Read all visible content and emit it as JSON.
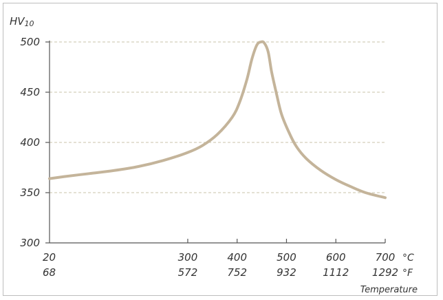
{
  "chart_data": {
    "type": "line",
    "title": "",
    "ylabel": {
      "main": "HV",
      "sub": "10"
    },
    "xlabel": "Temperature",
    "ylim": [
      300,
      500
    ],
    "yticks": [
      "300",
      "350",
      "400",
      "450",
      "500"
    ],
    "yticks_values": [
      300,
      350,
      400,
      450,
      500
    ],
    "xlim": [
      20,
      700
    ],
    "xticks_c": [
      "20",
      "300",
      "400",
      "500",
      "600",
      "700"
    ],
    "xticks_f": [
      "68",
      "572",
      "752",
      "932",
      "1112",
      "1292"
    ],
    "xticks_values": [
      20,
      300,
      400,
      500,
      600,
      700
    ],
    "x_unit_c": "°C",
    "x_unit_f": "°F",
    "grid": "horizontal-dashed",
    "series_color": "#c4b49a",
    "series": [
      {
        "x": [
          20,
          50,
          100,
          150,
          200,
          250,
          300,
          330,
          360,
          390,
          405,
          420,
          430,
          440,
          448,
          455,
          463,
          470,
          480,
          490,
          505,
          520,
          540,
          570,
          600,
          630,
          660,
          700
        ],
        "values": [
          364,
          366,
          369,
          372,
          376,
          382,
          390,
          397,
          408,
          425,
          440,
          463,
          483,
          497,
          500,
          499,
          490,
          470,
          448,
          428,
          410,
          396,
          384,
          372,
          363,
          356,
          350,
          345
        ]
      }
    ]
  }
}
